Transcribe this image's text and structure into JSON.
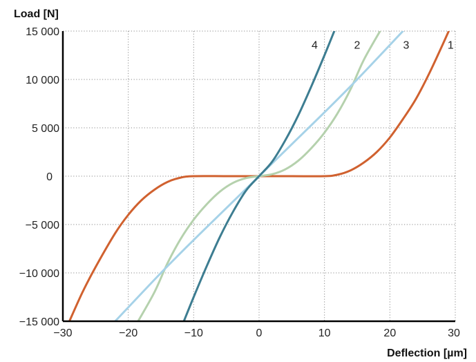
{
  "chart_data": {
    "type": "line",
    "title": "",
    "ylabel": "Load [N]",
    "xlabel": "Deflection [µm]",
    "xlim": [
      -30,
      30
    ],
    "ylim": [
      -15000,
      15000
    ],
    "grid": true,
    "x_ticks": [
      {
        "value": -30,
        "label": "−30"
      },
      {
        "value": -20,
        "label": "−20"
      },
      {
        "value": -10,
        "label": "−10"
      },
      {
        "value": 0,
        "label": "0"
      },
      {
        "value": 10,
        "label": "10"
      },
      {
        "value": 20,
        "label": "20"
      },
      {
        "value": 30,
        "label": "30"
      }
    ],
    "y_ticks": [
      {
        "value": 15000,
        "label": "15 000"
      },
      {
        "value": 10000,
        "label": "10 000"
      },
      {
        "value": 5000,
        "label": "5 000"
      },
      {
        "value": 0,
        "label": "0"
      },
      {
        "value": -5000,
        "label": "−5 000"
      },
      {
        "value": -10000,
        "label": "−10 000"
      },
      {
        "value": -15000,
        "label": "−15 000"
      }
    ],
    "series": [
      {
        "name": "1",
        "color": "#d0612f",
        "x": [
          -29,
          -27,
          -25,
          -22,
          -20,
          -18,
          -16,
          -14,
          -12,
          -10,
          -5,
          0,
          5,
          10,
          12,
          14,
          16,
          18,
          20,
          22,
          24,
          26,
          28,
          29
        ],
        "y": [
          -15000,
          -12000,
          -9400,
          -5900,
          -4000,
          -2500,
          -1400,
          -600,
          -150,
          0,
          0,
          0,
          0,
          0,
          150,
          600,
          1400,
          2500,
          4000,
          5900,
          8000,
          10600,
          13500,
          15000
        ]
      },
      {
        "name": "2",
        "color": "#b5d1ad",
        "x": [
          -18.5,
          -16,
          -14,
          -12,
          -10,
          -8,
          -6,
          -4,
          -2,
          0,
          2,
          4,
          6,
          8,
          10,
          12,
          14,
          16,
          18.5
        ],
        "y": [
          -15000,
          -12000,
          -9000,
          -6500,
          -4500,
          -2900,
          -1600,
          -700,
          -200,
          0,
          200,
          700,
          1600,
          2900,
          4500,
          6500,
          9000,
          12000,
          15000
        ]
      },
      {
        "name": "3",
        "color": "#a6d2e8",
        "x": [
          -22,
          -15,
          -10,
          -5,
          0,
          5,
          10,
          15,
          22
        ],
        "y": [
          -15000,
          -10000,
          -6600,
          -3300,
          0,
          3300,
          6600,
          10000,
          15000
        ]
      },
      {
        "name": "4",
        "color": "#3d7d91",
        "x": [
          -11.5,
          -10,
          -8,
          -6,
          -4,
          -2,
          0,
          2,
          4,
          6,
          8,
          10,
          11.5
        ],
        "y": [
          -15000,
          -12500,
          -9300,
          -6300,
          -3700,
          -1500,
          0,
          1500,
          3700,
          6300,
          9300,
          12500,
          15000
        ]
      }
    ],
    "curve_labels": [
      {
        "text": "4",
        "x": 8.5,
        "y": 13600
      },
      {
        "text": "2",
        "x": 15,
        "y": 13600
      },
      {
        "text": "3",
        "x": 22.5,
        "y": 13600
      },
      {
        "text": "1",
        "x": 29.3,
        "y": 13600
      }
    ]
  }
}
